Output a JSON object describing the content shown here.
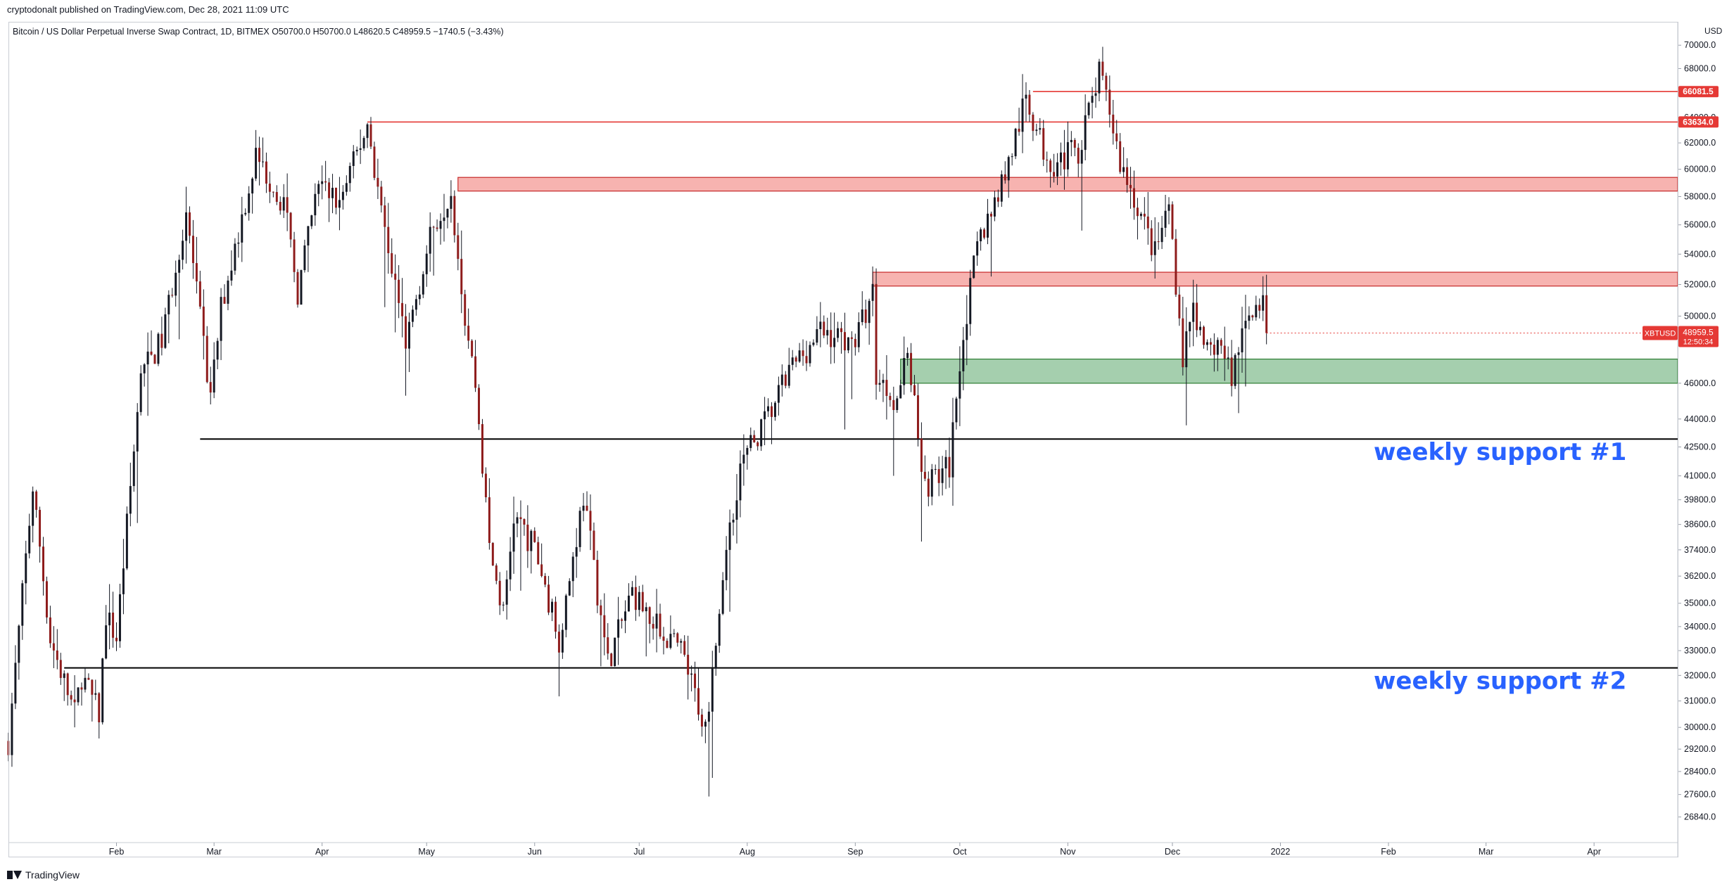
{
  "publisher": {
    "text": "cryptodonalt published on TradingView.com, Dec 28, 2021 11:09 UTC"
  },
  "symbol_info": {
    "text": "Bitcoin / US Dollar Perpetual Inverse Swap Contract, 1D, BITMEX  O50700.0  H50700.0  L48620.5  C48959.5  −1740.5 (−3.43%)"
  },
  "brand": {
    "label": "TradingView",
    "icon": "tradingview-logo-icon"
  },
  "colors": {
    "bull": "#131722",
    "bear": "#8e1b1b",
    "wick": "#131722",
    "resistance_line": "#e53935",
    "resistance_zone_fill": "#f7b3b0",
    "resistance_zone_stroke": "#c62828",
    "support_zone_fill": "#a5cfae",
    "support_zone_stroke": "#2e7d32",
    "support_line": "#000000",
    "annotation": "#2962ff",
    "axis_text": "#131722",
    "price_tag": "#e53935"
  },
  "chart_data": {
    "type": "candlestick",
    "title": "Bitcoin / US Dollar Perpetual Inverse Swap Contract, 1D, BITMEX",
    "ylabel": "USD",
    "y_scale": "log",
    "ylim": [
      26000,
      72000
    ],
    "xlim": [
      "2021-01-01",
      "2022-04-25"
    ],
    "x_ticks": [
      {
        "date": "2021-02-01",
        "label": "Feb"
      },
      {
        "date": "2021-03-01",
        "label": "Mar"
      },
      {
        "date": "2021-04-01",
        "label": "Apr"
      },
      {
        "date": "2021-05-01",
        "label": "May"
      },
      {
        "date": "2021-06-01",
        "label": "Jun"
      },
      {
        "date": "2021-07-01",
        "label": "Jul"
      },
      {
        "date": "2021-08-01",
        "label": "Aug"
      },
      {
        "date": "2021-09-01",
        "label": "Sep"
      },
      {
        "date": "2021-10-01",
        "label": "Oct"
      },
      {
        "date": "2021-11-01",
        "label": "Nov"
      },
      {
        "date": "2021-12-01",
        "label": "Dec"
      },
      {
        "date": "2022-01-01",
        "label": "2022"
      },
      {
        "date": "2022-02-01",
        "label": "Feb"
      },
      {
        "date": "2022-03-01",
        "label": "Mar"
      },
      {
        "date": "2022-04-01",
        "label": "Apr"
      }
    ],
    "y_ticks": [
      {
        "value": 70000,
        "label": "70000.0"
      },
      {
        "value": 68000,
        "label": "68000.0"
      },
      {
        "value": 64000,
        "label": "64000.0"
      },
      {
        "value": 62000,
        "label": "62000.0"
      },
      {
        "value": 60000,
        "label": "60000.0"
      },
      {
        "value": 58000,
        "label": "58000.0"
      },
      {
        "value": 56000,
        "label": "56000.0"
      },
      {
        "value": 54000,
        "label": "54000.0"
      },
      {
        "value": 52000,
        "label": "52000.0"
      },
      {
        "value": 50000,
        "label": "50000.0"
      },
      {
        "value": 46000,
        "label": "46000.0"
      },
      {
        "value": 44000,
        "label": "44000.0"
      },
      {
        "value": 42500,
        "label": "42500.0"
      },
      {
        "value": 41000,
        "label": "41000.0"
      },
      {
        "value": 39800,
        "label": "39800.0"
      },
      {
        "value": 38600,
        "label": "38600.0"
      },
      {
        "value": 37400,
        "label": "37400.0"
      },
      {
        "value": 36200,
        "label": "36200.0"
      },
      {
        "value": 35000,
        "label": "35000.0"
      },
      {
        "value": 34000,
        "label": "34000.0"
      },
      {
        "value": 33000,
        "label": "33000.0"
      },
      {
        "value": 32000,
        "label": "32000.0"
      },
      {
        "value": 31000,
        "label": "31000.0"
      },
      {
        "value": 30000,
        "label": "30000.0"
      },
      {
        "value": 29200,
        "label": "29200.0"
      },
      {
        "value": 28400,
        "label": "28400.0"
      },
      {
        "value": 27600,
        "label": "27600.0"
      },
      {
        "value": 26840,
        "label": "26840.0"
      }
    ],
    "price_path": [
      [
        "2021-01-01",
        29500
      ],
      [
        "2021-01-08",
        40500
      ],
      [
        "2021-01-13",
        33500
      ],
      [
        "2021-01-20",
        30500
      ],
      [
        "2021-01-22",
        32000
      ],
      [
        "2021-01-27",
        30500
      ],
      [
        "2021-01-29",
        34500
      ],
      [
        "2021-02-01",
        33500
      ],
      [
        "2021-02-08",
        46500
      ],
      [
        "2021-02-14",
        48500
      ],
      [
        "2021-02-21",
        57000
      ],
      [
        "2021-02-28",
        45000
      ],
      [
        "2021-03-03",
        50500
      ],
      [
        "2021-03-13",
        61000
      ],
      [
        "2021-03-21",
        57500
      ],
      [
        "2021-03-25",
        51500
      ],
      [
        "2021-03-31",
        59000
      ],
      [
        "2021-04-06",
        57500
      ],
      [
        "2021-04-14",
        63500
      ],
      [
        "2021-04-18",
        57000
      ],
      [
        "2021-04-25",
        48500
      ],
      [
        "2021-05-03",
        56000
      ],
      [
        "2021-05-08",
        58500
      ],
      [
        "2021-05-12",
        50000
      ],
      [
        "2021-05-15",
        46000
      ],
      [
        "2021-05-19",
        37500
      ],
      [
        "2021-05-23",
        34500
      ],
      [
        "2021-05-26",
        39000
      ],
      [
        "2021-06-01",
        37500
      ],
      [
        "2021-06-08",
        33500
      ],
      [
        "2021-06-15",
        40000
      ],
      [
        "2021-06-22",
        32500
      ],
      [
        "2021-06-29",
        35500
      ],
      [
        "2021-07-06",
        34000
      ],
      [
        "2021-07-13",
        33000
      ],
      [
        "2021-07-20",
        30000
      ],
      [
        "2021-07-26",
        37500
      ],
      [
        "2021-07-30",
        41500
      ],
      [
        "2021-08-08",
        44500
      ],
      [
        "2021-08-14",
        47000
      ],
      [
        "2021-08-22",
        49000
      ],
      [
        "2021-09-01",
        48500
      ],
      [
        "2021-09-06",
        51500
      ],
      [
        "2021-09-07",
        46500
      ],
      [
        "2021-09-13",
        45000
      ],
      [
        "2021-09-16",
        48000
      ],
      [
        "2021-09-21",
        40500
      ],
      [
        "2021-09-28",
        41500
      ],
      [
        "2021-10-01",
        47500
      ],
      [
        "2021-10-06",
        54500
      ],
      [
        "2021-10-15",
        60500
      ],
      [
        "2021-10-20",
        65500
      ],
      [
        "2021-10-25",
        61500
      ],
      [
        "2021-10-28",
        60500
      ],
      [
        "2021-11-04",
        61500
      ],
      [
        "2021-11-10",
        67500
      ],
      [
        "2021-11-13",
        64500
      ],
      [
        "2021-11-16",
        60500
      ],
      [
        "2021-11-20",
        58000
      ],
      [
        "2021-11-26",
        54000
      ],
      [
        "2021-11-30",
        57500
      ],
      [
        "2021-12-04",
        47500
      ],
      [
        "2021-12-07",
        51000
      ],
      [
        "2021-12-10",
        47500
      ],
      [
        "2021-12-14",
        48500
      ],
      [
        "2021-12-18",
        46500
      ],
      [
        "2021-12-21",
        49000
      ],
      [
        "2021-12-24",
        50800
      ],
      [
        "2021-12-27",
        50700
      ],
      [
        "2021-12-28",
        48959.5
      ]
    ],
    "last_price": {
      "value": 48959.5,
      "label": "48959.5",
      "symbol": "XBTUSD",
      "countdown": "12:50:34"
    },
    "horizontal_lines": [
      {
        "value": 66081.5,
        "label": "66081.5",
        "from": "2021-10-22",
        "color": "red",
        "tag": true
      },
      {
        "value": 63634.0,
        "label": "63634.0",
        "from": "2021-04-14",
        "color": "red",
        "tag": true
      },
      {
        "value": 42920,
        "from": "2021-02-25",
        "color": "black"
      },
      {
        "value": 32300,
        "from": "2021-01-17",
        "color": "black"
      }
    ],
    "zones": [
      {
        "type": "resistance",
        "from": "2021-05-10",
        "low": 58400,
        "high": 59400
      },
      {
        "type": "resistance",
        "from": "2021-09-06",
        "low": 51900,
        "high": 52800
      },
      {
        "type": "support",
        "from": "2021-09-14",
        "low": 46000,
        "high": 47400
      }
    ],
    "annotations": [
      {
        "text": "weekly support #1",
        "value": 42920
      },
      {
        "text": "weekly support #2",
        "value": 32300
      }
    ]
  }
}
